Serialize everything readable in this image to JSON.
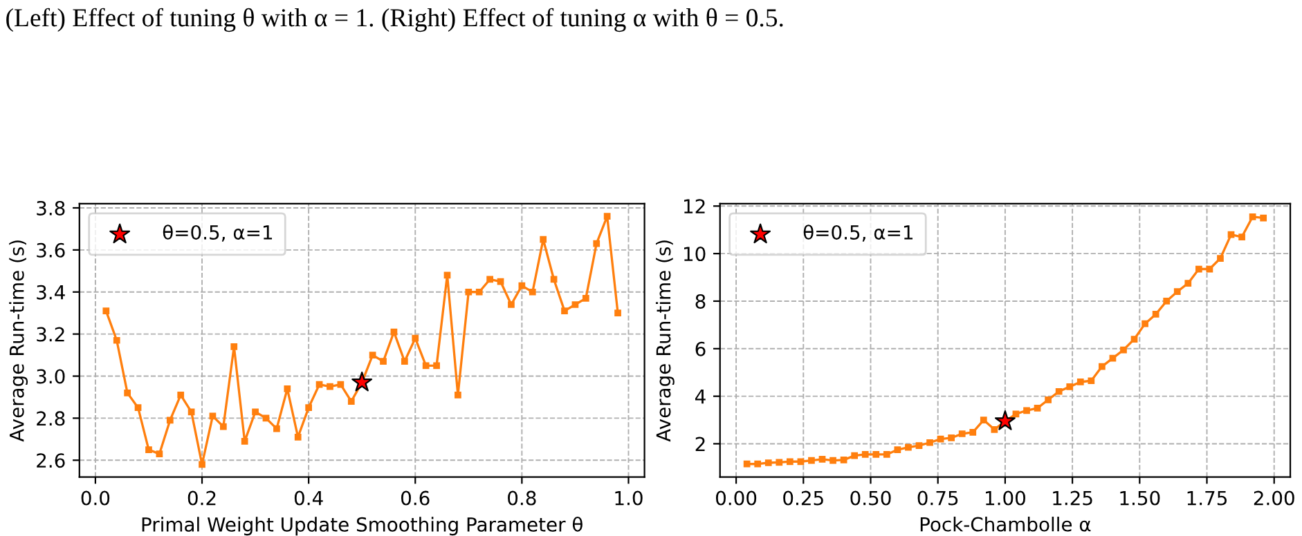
{
  "chart_data": [
    {
      "type": "line",
      "annotations": [
        "(Left) Effect of tuning θ with α = 1. (Right) Effect of tuning α with θ = 0.5."
      ],
      "xlabel": "Primal Weight Update Smoothing Parameter θ",
      "ylabel": "Average Run-time (s)",
      "xlim": [
        -0.03,
        1.03
      ],
      "ylim": [
        2.52,
        3.82
      ],
      "xticks": [
        {
          "value": 0.0,
          "label": "0.0"
        },
        0.2,
        0.4,
        0.6,
        0.8,
        {
          "value": 1.0,
          "label": "1.0"
        }
      ],
      "yticks": [
        2.6,
        2.8,
        {
          "value": 3.0,
          "label": "3.0"
        },
        3.2,
        3.4,
        3.6,
        3.8
      ],
      "grid": true,
      "legend": "top left",
      "series": [
        {
          "color": "#ff7f0e",
          "marker": "square",
          "x": [
            0.02,
            0.04,
            0.06,
            0.08,
            0.1,
            0.12,
            0.14,
            0.16,
            0.18,
            0.2,
            0.22,
            0.24,
            0.26,
            0.28,
            0.3,
            0.32,
            0.34,
            0.36,
            0.38,
            0.4,
            0.42,
            0.44,
            0.46,
            0.48,
            0.5,
            0.52,
            0.54,
            0.56,
            0.58,
            0.6,
            0.62,
            0.64,
            0.66,
            0.68,
            0.7,
            0.72,
            0.74,
            0.76,
            0.78,
            0.8,
            0.82,
            0.84,
            0.86,
            0.88,
            0.9,
            0.92,
            0.94,
            0.96,
            0.98
          ],
          "values": [
            3.31,
            3.17,
            2.92,
            2.85,
            2.65,
            2.63,
            2.79,
            2.91,
            2.83,
            2.58,
            2.81,
            2.76,
            3.14,
            2.69,
            2.83,
            2.8,
            2.75,
            2.94,
            2.71,
            2.85,
            2.96,
            2.95,
            2.96,
            2.88,
            2.97,
            3.1,
            3.07,
            3.21,
            3.07,
            3.18,
            3.05,
            3.05,
            3.48,
            2.91,
            3.4,
            3.4,
            3.46,
            3.45,
            3.34,
            3.43,
            3.4,
            3.65,
            3.46,
            3.31,
            3.34,
            3.37,
            3.63,
            3.76,
            3.3
          ]
        },
        {
          "type": "scatter",
          "name": "θ=0.5, α=1",
          "color": "#ff0000",
          "marker": "star",
          "x": [
            0.5
          ],
          "values": [
            2.97
          ]
        }
      ]
    },
    {
      "type": "line",
      "xlabel": "Pock-Chambolle α",
      "ylabel": "Average Run-time (s)",
      "xlim": [
        -0.06,
        2.06
      ],
      "ylim": [
        0.6,
        12.1
      ],
      "xticks": [
        {
          "value": 0.0,
          "label": "0.00"
        },
        {
          "value": 0.25,
          "label": "0.25"
        },
        {
          "value": 0.5,
          "label": "0.50"
        },
        {
          "value": 0.75,
          "label": "0.75"
        },
        {
          "value": 1.0,
          "label": "1.00"
        },
        {
          "value": 1.25,
          "label": "1.25"
        },
        {
          "value": 1.5,
          "label": "1.50"
        },
        {
          "value": 1.75,
          "label": "1.75"
        },
        {
          "value": 2.0,
          "label": "2.00"
        }
      ],
      "yticks": [
        2,
        4,
        6,
        8,
        10,
        12
      ],
      "grid": true,
      "legend": "top left",
      "series": [
        {
          "color": "#ff7f0e",
          "marker": "square",
          "x": [
            0.04,
            0.08,
            0.12,
            0.16,
            0.2,
            0.24,
            0.28,
            0.32,
            0.36,
            0.4,
            0.44,
            0.48,
            0.52,
            0.56,
            0.6,
            0.64,
            0.68,
            0.72,
            0.76,
            0.8,
            0.84,
            0.88,
            0.92,
            0.96,
            1.0,
            1.04,
            1.08,
            1.12,
            1.16,
            1.2,
            1.24,
            1.28,
            1.32,
            1.36,
            1.4,
            1.44,
            1.48,
            1.52,
            1.56,
            1.6,
            1.64,
            1.68,
            1.72,
            1.76,
            1.8,
            1.84,
            1.88,
            1.92,
            1.96
          ],
          "values": [
            1.15,
            1.15,
            1.2,
            1.22,
            1.25,
            1.25,
            1.3,
            1.35,
            1.3,
            1.32,
            1.5,
            1.55,
            1.55,
            1.55,
            1.75,
            1.85,
            1.92,
            2.05,
            2.2,
            2.25,
            2.42,
            2.48,
            3.0,
            2.6,
            2.95,
            3.25,
            3.4,
            3.5,
            3.85,
            4.2,
            4.4,
            4.6,
            4.65,
            5.25,
            5.6,
            5.95,
            6.4,
            7.05,
            7.45,
            8.0,
            8.4,
            8.75,
            9.35,
            9.35,
            9.8,
            10.8,
            10.7,
            11.55,
            11.5
          ]
        },
        {
          "type": "scatter",
          "name": "θ=0.5, α=1",
          "color": "#ff0000",
          "marker": "star",
          "x": [
            1.0
          ],
          "values": [
            2.95
          ]
        }
      ]
    }
  ]
}
